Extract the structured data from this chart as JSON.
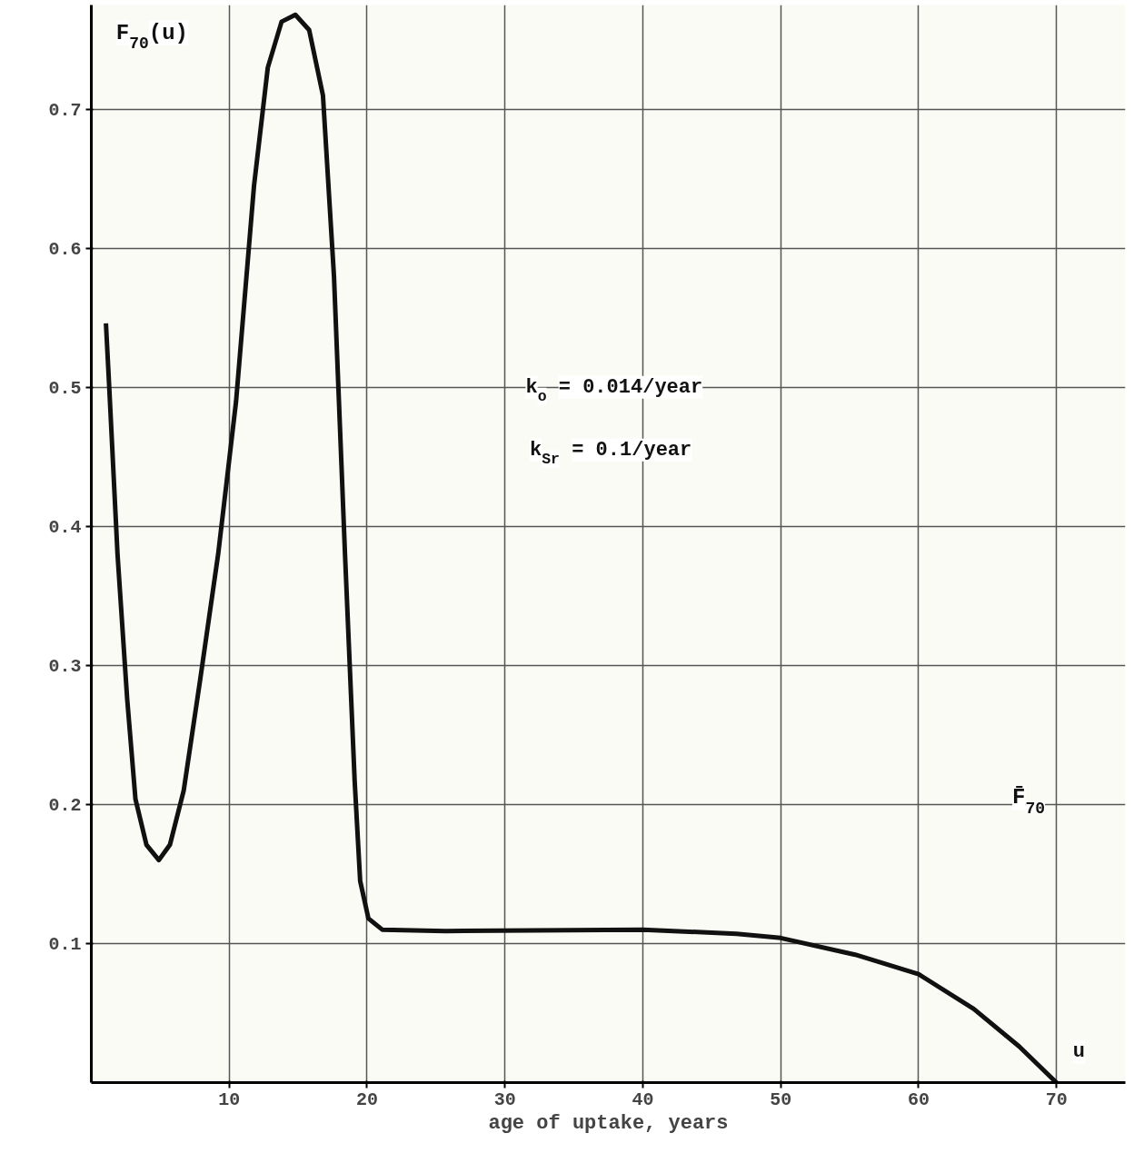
{
  "chart_data": {
    "type": "line",
    "ylabel": "F$_{70}$(u)",
    "xlabel": "age of uptake, years",
    "annotations": [
      "k$_{o}$ = 0.014/year",
      "k$_{Sr}$ = 0.1/year",
      "F̄$_{70}$",
      "u"
    ],
    "x": [
      1.06,
      1.3,
      1.9,
      2.6,
      3.2,
      4.0,
      4.9,
      5.7,
      6.7,
      7.9,
      9.2,
      10.5,
      11.8,
      12.8,
      13.8,
      14.8,
      15.8,
      16.8,
      17.6,
      18.4,
      19.1,
      19.5,
      20.1,
      21.1,
      25.7,
      40,
      46.8,
      50,
      55.4,
      60,
      64,
      67.3,
      70
    ],
    "series": [
      {
        "color": "#111111",
        "values": [
          0.546,
          0.5,
          0.38,
          0.276,
          0.204,
          0.171,
          0.16,
          0.171,
          0.21,
          0.29,
          0.38,
          0.49,
          0.645,
          0.73,
          0.763,
          0.768,
          0.757,
          0.71,
          0.58,
          0.38,
          0.217,
          0.145,
          0.118,
          0.11,
          0.109,
          0.11,
          0.107,
          0.104,
          0.092,
          0.078,
          0.053,
          0.026,
          0
        ]
      }
    ],
    "xlim": [
      0,
      75
    ],
    "ylim": [
      0,
      0.775
    ],
    "xticks": [
      10,
      20,
      30,
      40,
      50,
      60,
      70
    ],
    "yticks": [
      0.1,
      0.2,
      0.3,
      0.4,
      0.5,
      0.6,
      0.7
    ],
    "grid": true,
    "marker": "none",
    "line_style": "solid"
  }
}
